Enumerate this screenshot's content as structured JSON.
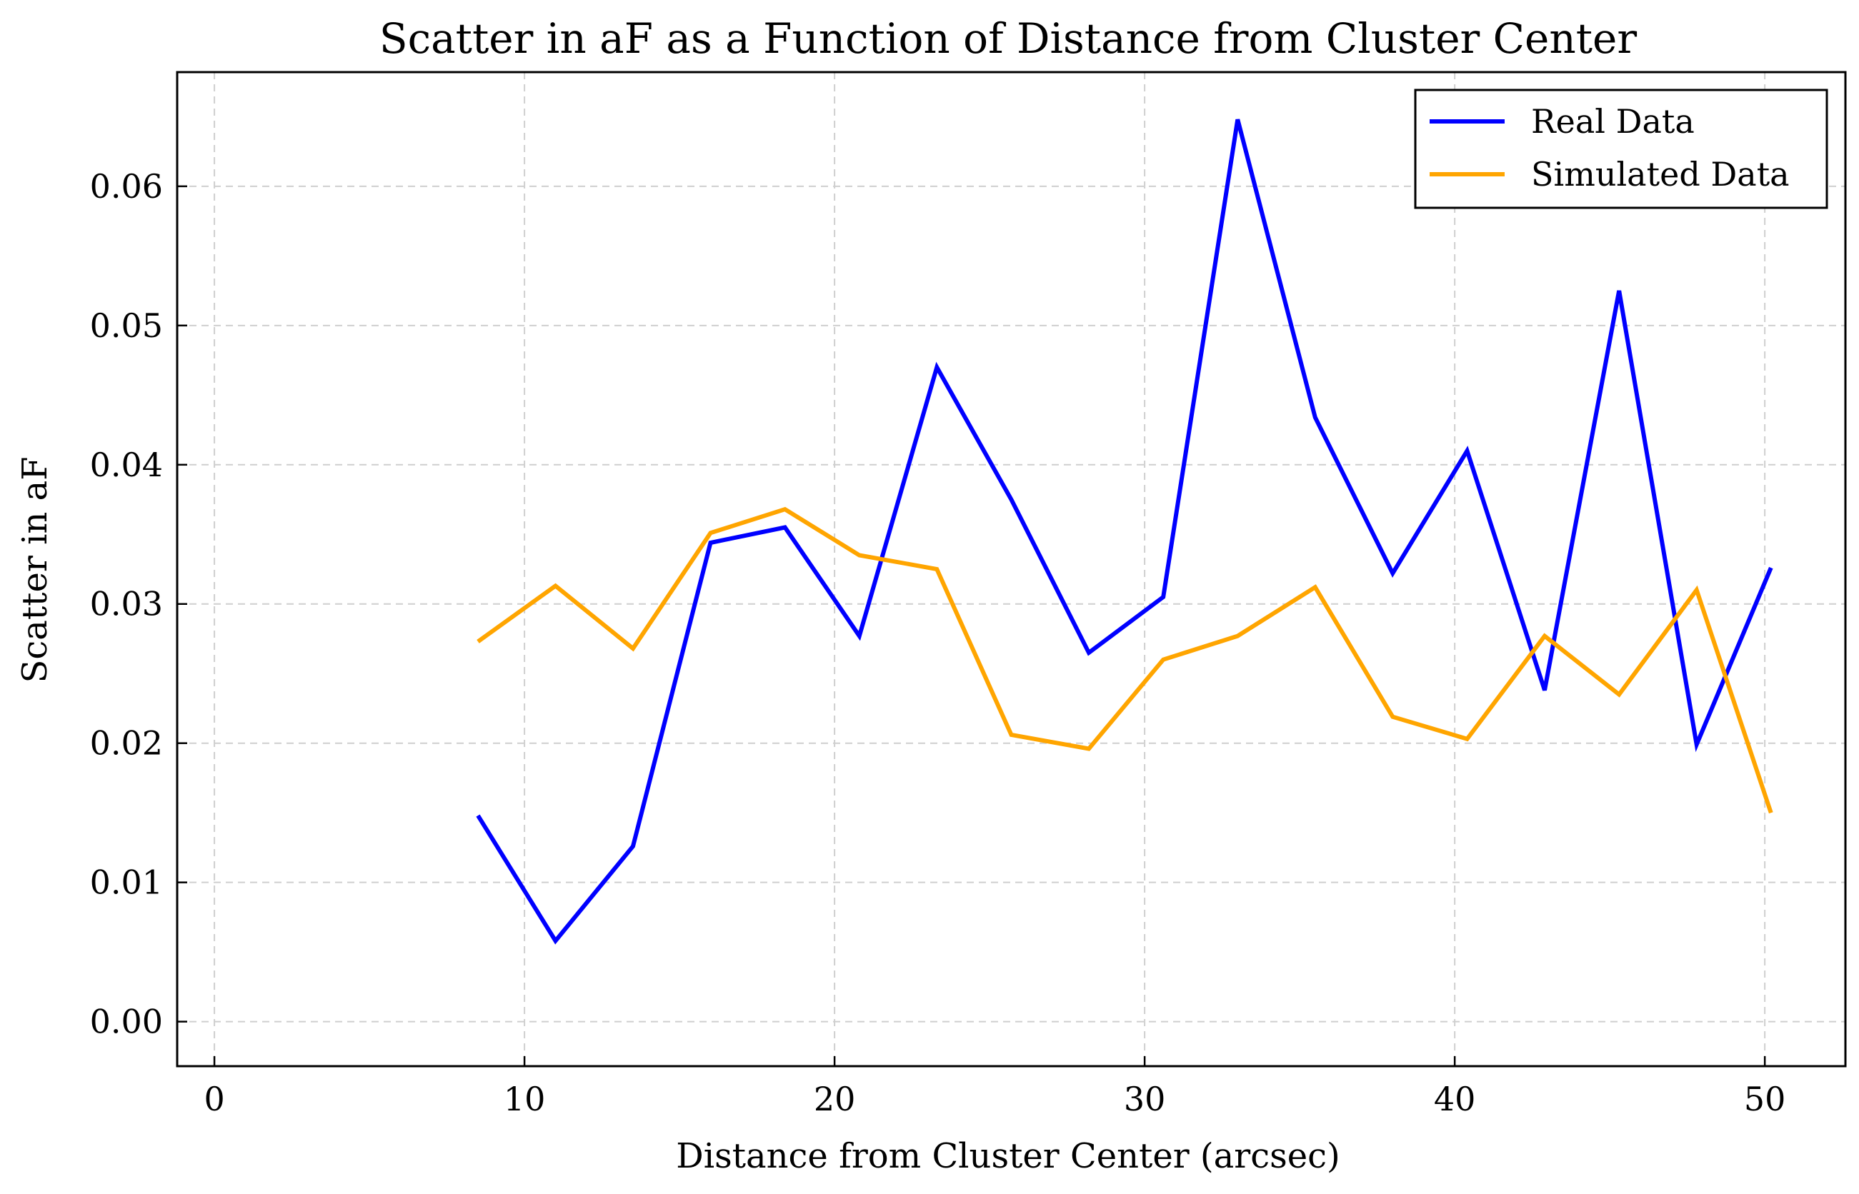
{
  "chart_data": {
    "type": "line",
    "title": "Scatter in aF as a Function of Distance from Cluster Center",
    "xlabel": "Distance from Cluster Center (arcsec)",
    "ylabel": "Scatter in aF",
    "xlim": [
      -1.2,
      52.6
    ],
    "ylim": [
      -0.0032,
      0.0682
    ],
    "x_ticks": [
      0,
      10,
      20,
      30,
      40,
      50
    ],
    "x_tick_labels": [
      "0",
      "10",
      "20",
      "30",
      "40",
      "50"
    ],
    "y_ticks": [
      0.0,
      0.01,
      0.02,
      0.03,
      0.04,
      0.05,
      0.06
    ],
    "y_tick_labels": [
      "0.00",
      "0.01",
      "0.02",
      "0.03",
      "0.04",
      "0.05",
      "0.06"
    ],
    "grid": true,
    "legend_position": "top-right",
    "x": [
      8.5,
      11.0,
      13.5,
      16.0,
      18.4,
      20.8,
      23.3,
      25.7,
      28.2,
      30.6,
      33.0,
      35.5,
      38.0,
      40.4,
      42.9,
      45.3,
      47.8,
      50.2
    ],
    "series": [
      {
        "name": "Real Data",
        "color": "#0000ff",
        "values": [
          0.0148,
          0.0058,
          0.0126,
          0.0344,
          0.0355,
          0.0277,
          0.047,
          0.0375,
          0.0265,
          0.0305,
          0.0648,
          0.0434,
          0.0322,
          0.041,
          0.0238,
          0.0525,
          0.0199,
          0.0326
        ]
      },
      {
        "name": "Simulated Data",
        "color": "#ffa500",
        "values": [
          0.0273,
          0.0313,
          0.0268,
          0.0351,
          0.0368,
          0.0335,
          0.0325,
          0.0206,
          0.0196,
          0.026,
          0.0277,
          0.0312,
          0.0219,
          0.0203,
          0.0277,
          0.0235,
          0.031,
          0.015
        ]
      }
    ]
  }
}
